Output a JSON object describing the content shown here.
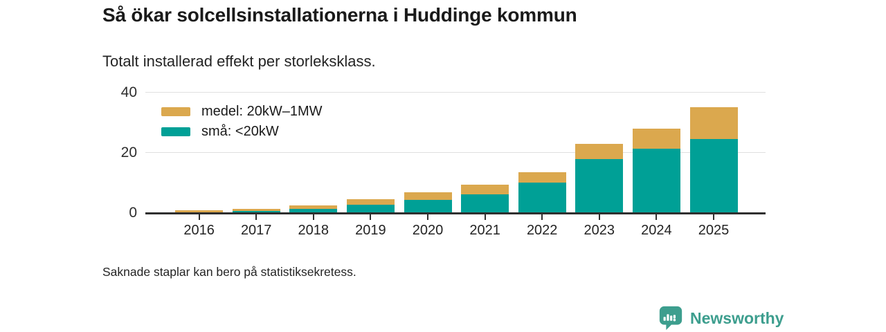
{
  "page": {
    "title": "Så ökar solcellsinstallationerna i Huddinge kommun",
    "subtitle": "Totalt installerad effekt per storleksklass.",
    "footnote": "Saknade staplar kan bero på statistiksekretess.",
    "brand": {
      "name": "Newsworthy",
      "color": "#3d9e8e",
      "icon": "bar-chart-speech-bubble-icon"
    }
  },
  "chart_data": {
    "type": "bar",
    "stacked": true,
    "title": "Så ökar solcellsinstallationerna i Huddinge kommun",
    "subtitle": "Totalt installerad effekt per storleksklass.",
    "categories": [
      "2016",
      "2017",
      "2018",
      "2019",
      "2020",
      "2021",
      "2022",
      "2023",
      "2024",
      "2025"
    ],
    "series": [
      {
        "name": "medel: 20kW–1MW",
        "color": "#dba84e",
        "stack": "top",
        "values": [
          0.8,
          0.6,
          1.1,
          1.8,
          2.5,
          3.2,
          3.5,
          5.2,
          6.7,
          10.5
        ]
      },
      {
        "name": "små: <20kW",
        "color": "#00a096",
        "stack": "bottom",
        "values": [
          0.2,
          0.8,
          1.4,
          2.7,
          4.4,
          6.3,
          10.0,
          17.8,
          21.3,
          24.5
        ]
      }
    ],
    "totals": [
      1.0,
      1.4,
      2.5,
      4.5,
      6.9,
      9.5,
      13.5,
      23.0,
      28.0,
      35.0
    ],
    "xlabel": "",
    "ylabel": "",
    "yticks": [
      0,
      20,
      40
    ],
    "ylim": [
      0,
      40
    ],
    "grid": "horizontal",
    "legend_position": "top-left",
    "axis_color": "#2f2f2f",
    "grid_color": "#e0e0e0"
  }
}
